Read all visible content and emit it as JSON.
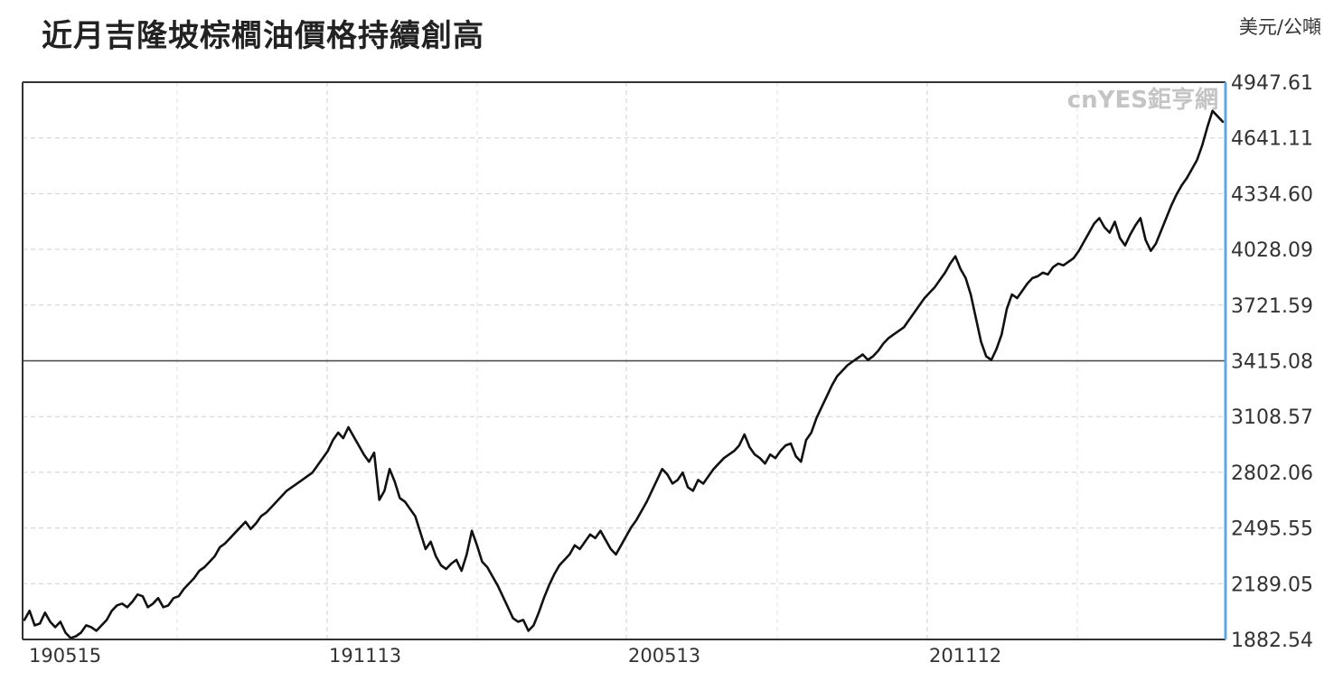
{
  "title": "近月吉隆坡棕櫚油價格持續創高",
  "unit": "美元/公噸",
  "watermark": "cnYES鉅亨網",
  "chart_data": {
    "type": "line",
    "title": "近月吉隆坡棕櫚油價格持續創高",
    "ylabel": "美元/公噸",
    "ylim": [
      1882.54,
      4947.61
    ],
    "yticks": [
      "4947.61",
      "4641.11",
      "4334.60",
      "4028.09",
      "3721.59",
      "3415.08",
      "3108.57",
      "2802.06",
      "2495.55",
      "2189.05",
      "1882.54"
    ],
    "xticks": [
      "190515",
      "191113",
      "200513",
      "201112"
    ],
    "reference_line": 3415.08,
    "grid": true,
    "series": [
      {
        "values": [
          1990,
          2040,
          1960,
          1970,
          2030,
          1980,
          1950,
          1980,
          1920,
          1890,
          1900,
          1920,
          1960,
          1950,
          1930,
          1960,
          1990,
          2040,
          2070,
          2080,
          2060,
          2090,
          2130,
          2120,
          2060,
          2080,
          2110,
          2060,
          2070,
          2110,
          2120,
          2160,
          2190,
          2220,
          2260,
          2280,
          2310,
          2340,
          2390,
          2410,
          2440,
          2470,
          2500,
          2530,
          2490,
          2520,
          2560,
          2580,
          2610,
          2640,
          2670,
          2700,
          2720,
          2740,
          2760,
          2780,
          2800,
          2840,
          2880,
          2920,
          2980,
          3020,
          2990,
          3050,
          3000,
          2950,
          2900,
          2860,
          2910,
          2650,
          2700,
          2820,
          2750,
          2660,
          2640,
          2600,
          2560,
          2470,
          2380,
          2420,
          2340,
          2290,
          2270,
          2300,
          2320,
          2260,
          2350,
          2480,
          2400,
          2310,
          2280,
          2230,
          2180,
          2120,
          2060,
          2000,
          1980,
          1990,
          1930,
          1960,
          2030,
          2110,
          2180,
          2240,
          2290,
          2320,
          2350,
          2400,
          2380,
          2420,
          2460,
          2440,
          2480,
          2430,
          2380,
          2350,
          2400,
          2450,
          2500,
          2540,
          2590,
          2640,
          2700,
          2760,
          2820,
          2790,
          2740,
          2760,
          2800,
          2720,
          2700,
          2760,
          2740,
          2780,
          2820,
          2850,
          2880,
          2900,
          2920,
          2950,
          3010,
          2940,
          2900,
          2880,
          2850,
          2900,
          2880,
          2920,
          2950,
          2960,
          2890,
          2860,
          2980,
          3020,
          3100,
          3160,
          3220,
          3280,
          3330,
          3360,
          3390,
          3410,
          3430,
          3450,
          3420,
          3440,
          3470,
          3510,
          3540,
          3560,
          3580,
          3600,
          3640,
          3680,
          3720,
          3760,
          3790,
          3820,
          3860,
          3900,
          3950,
          3990,
          3920,
          3870,
          3780,
          3650,
          3520,
          3440,
          3420,
          3480,
          3560,
          3700,
          3780,
          3760,
          3800,
          3840,
          3870,
          3880,
          3900,
          3890,
          3930,
          3950,
          3940,
          3960,
          3980,
          4020,
          4070,
          4120,
          4170,
          4200,
          4150,
          4120,
          4180,
          4090,
          4050,
          4110,
          4160,
          4200,
          4080,
          4020,
          4060,
          4130,
          4200,
          4270,
          4330,
          4380,
          4420,
          4470,
          4520,
          4600,
          4700,
          4790,
          4760,
          4730
        ]
      }
    ]
  }
}
